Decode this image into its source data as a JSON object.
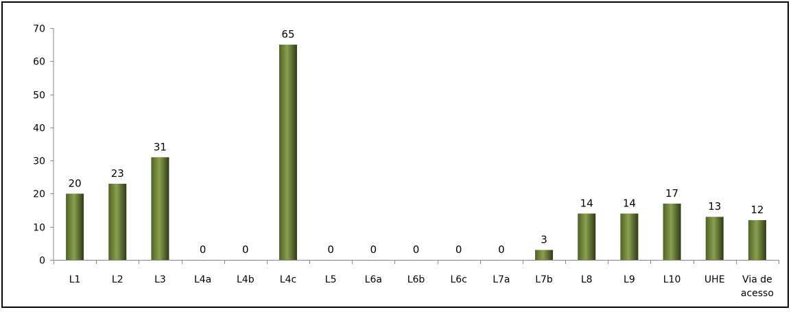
{
  "chart_data": {
    "type": "bar",
    "categories": [
      "L1",
      "L2",
      "L3",
      "L4a",
      "L4b",
      "L4c",
      "L5",
      "L6a",
      "L6b",
      "L6c",
      "L7a",
      "L7b",
      "L8",
      "L9",
      "L10",
      "UHE",
      "Via de acesso"
    ],
    "category_lines": [
      [
        "L1"
      ],
      [
        "L2"
      ],
      [
        "L3"
      ],
      [
        "L4a"
      ],
      [
        "L4b"
      ],
      [
        "L4c"
      ],
      [
        "L5"
      ],
      [
        "L6a"
      ],
      [
        "L6b"
      ],
      [
        "L6c"
      ],
      [
        "L7a"
      ],
      [
        "L7b"
      ],
      [
        "L8"
      ],
      [
        "L9"
      ],
      [
        "L10"
      ],
      [
        "UHE"
      ],
      [
        "Via de",
        "acesso"
      ]
    ],
    "values": [
      20,
      23,
      31,
      0,
      0,
      65,
      0,
      0,
      0,
      0,
      0,
      3,
      14,
      14,
      17,
      13,
      12
    ],
    "data_labels": [
      "20",
      "23",
      "31",
      "0",
      "0",
      "65",
      "0",
      "0",
      "0",
      "0",
      "0",
      "3",
      "14",
      "14",
      "17",
      "13",
      "12"
    ],
    "title": "",
    "xlabel": "",
    "ylabel": "",
    "ylim": [
      0,
      70
    ],
    "y_ticks": [
      0,
      10,
      20,
      30,
      40,
      50,
      60,
      70
    ],
    "grid": false,
    "legend": "none",
    "colors": {
      "bar_fill": "#4f6228",
      "bar_highlight": "#8aa04c",
      "bar_shadow": "#2e3a16",
      "axis": "#868686",
      "frame": "#000000"
    }
  }
}
